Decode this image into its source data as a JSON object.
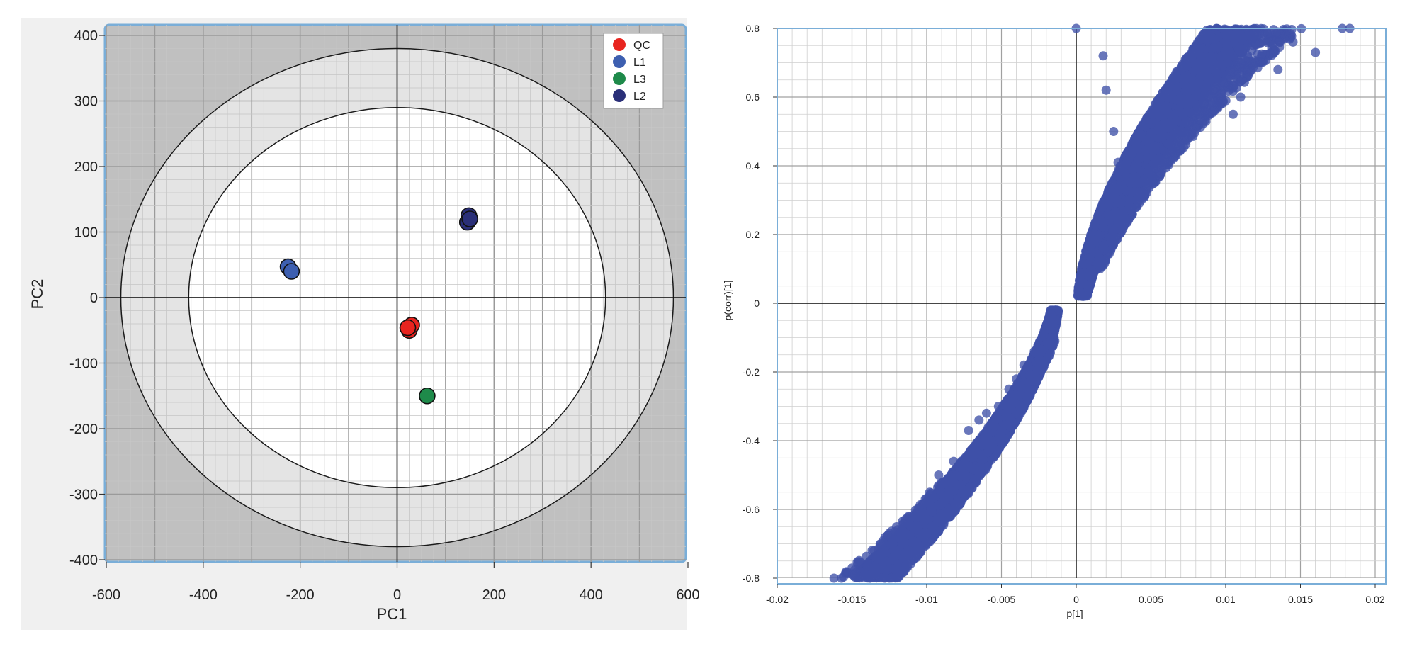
{
  "chart_data": [
    {
      "type": "scatter",
      "xlabel": "PC1",
      "ylabel": "PC2",
      "xlim": [
        -600,
        600
      ],
      "ylim": [
        -400,
        400
      ],
      "x_ticks": [
        "-600",
        "-400",
        "-200",
        "0",
        "200",
        "400",
        "600"
      ],
      "y_ticks": [
        "400",
        "300",
        "200",
        "100",
        "0",
        "-100",
        "-200",
        "-300",
        "-400"
      ],
      "grid": true,
      "legend_position": "top-right",
      "ellipses": [
        {
          "name": "outer",
          "rx": 570,
          "ry": 380
        },
        {
          "name": "inner",
          "rx": 430,
          "ry": 290
        }
      ],
      "series": [
        {
          "name": "QC",
          "color": "#e8241f",
          "points": [
            [
              25,
              -50
            ],
            [
              30,
              -42
            ],
            [
              22,
              -46
            ]
          ]
        },
        {
          "name": "L1",
          "color": "#3d5fb0",
          "points": [
            [
              -225,
              47
            ],
            [
              -218,
              40
            ]
          ]
        },
        {
          "name": "L3",
          "color": "#1e8a4a",
          "points": [
            [
              62,
              -150
            ]
          ]
        },
        {
          "name": "L2",
          "color": "#2a2f78",
          "points": [
            [
              148,
              125
            ],
            [
              145,
              115
            ],
            [
              150,
              120
            ]
          ]
        }
      ],
      "colors": {
        "outer_band": "#c0c0c0",
        "light_band": "#e4e4e4",
        "frame": "#7aaed8"
      }
    },
    {
      "type": "scatter",
      "xlabel": "p[1]",
      "ylabel": "p(corr)[1]",
      "xlim": [
        -0.02,
        0.02
      ],
      "ylim": [
        -0.8,
        0.8
      ],
      "x_ticks": [
        "-0.02",
        "-0.015",
        "-0.01",
        "-0.005",
        "0",
        "0.005",
        "0.01",
        "0.015",
        "0.02"
      ],
      "y_ticks": [
        "0.8",
        "0.6",
        "0.4",
        "0.2",
        "0",
        "-0.2",
        "-0.4",
        "-0.6",
        "-0.8"
      ],
      "grid": true,
      "color": "#3f51a8",
      "point_density": "very dense, S-shaped band",
      "bands": [
        {
          "p0": 0.0006,
          "lo": -0.002,
          "hi": 0.0017,
          "v0": 0.02,
          "vmax": 0.8,
          "k": 0.012,
          "pw": 1.0,
          "n": 5200,
          "sh": 0.0
        },
        {
          "p0": 0.0009,
          "lo": -0.0007,
          "hi": 0.0013,
          "v0": 0.1,
          "vmax": 0.8,
          "k": 0.015,
          "pw": 1.1,
          "n": 700,
          "sh": 0.0
        },
        {
          "p0": -0.0012,
          "lo": -0.0017,
          "hi": 0.0013,
          "v0": -0.02,
          "vmax": -0.8,
          "k": -0.014,
          "pw": 1.0,
          "n": 4600,
          "sh": 0.0
        },
        {
          "p0": -0.0008,
          "lo": -0.0013,
          "hi": 0.0008,
          "v0": -0.1,
          "vmax": -0.8,
          "k": -0.016,
          "pw": 1.1,
          "n": 700,
          "sh": 0.0
        }
      ],
      "features": [
        [
          0.0183,
          0.8
        ],
        [
          0.0178,
          0.8
        ],
        [
          0.016,
          0.73
        ],
        [
          0.0145,
          0.76
        ],
        [
          0.0135,
          0.68
        ],
        [
          0.012,
          0.7
        ],
        [
          0.011,
          0.6
        ],
        [
          0.0105,
          0.55
        ],
        [
          0.0095,
          0.6
        ],
        [
          0.009,
          0.65
        ],
        [
          0.0082,
          0.56
        ],
        [
          0.0075,
          0.52
        ],
        [
          0.0068,
          0.48
        ],
        [
          0.0063,
          0.44
        ],
        [
          0.0059,
          0.42
        ],
        [
          0.0055,
          0.48
        ],
        [
          0.0049,
          0.55
        ],
        [
          0.0042,
          0.35
        ],
        [
          0.0036,
          0.3
        ],
        [
          0.003,
          0.29
        ],
        [
          0.0028,
          0.41
        ],
        [
          0.0025,
          0.5
        ],
        [
          0.002,
          0.62
        ],
        [
          0.0018,
          0.72
        ],
        [
          -0.0162,
          -0.8
        ],
        [
          -0.0157,
          -0.8
        ],
        [
          -0.0148,
          -0.79
        ],
        [
          -0.0138,
          -0.8
        ],
        [
          -0.0128,
          -0.8
        ],
        [
          -0.0115,
          -0.78
        ],
        [
          -0.0122,
          -0.72
        ],
        [
          -0.0115,
          -0.67
        ],
        [
          -0.0105,
          -0.61
        ],
        [
          -0.0098,
          -0.55
        ],
        [
          -0.0092,
          -0.5
        ],
        [
          -0.0082,
          -0.46
        ],
        [
          -0.0072,
          -0.37
        ],
        [
          -0.0065,
          -0.34
        ],
        [
          -0.006,
          -0.32
        ],
        [
          -0.0052,
          -0.3
        ],
        [
          -0.0045,
          -0.25
        ],
        [
          -0.004,
          -0.22
        ],
        [
          -0.0035,
          -0.18
        ],
        [
          -0.0028,
          -0.14
        ],
        [
          -0.0022,
          -0.09
        ],
        [
          0.0,
          0.8
        ]
      ]
    }
  ]
}
